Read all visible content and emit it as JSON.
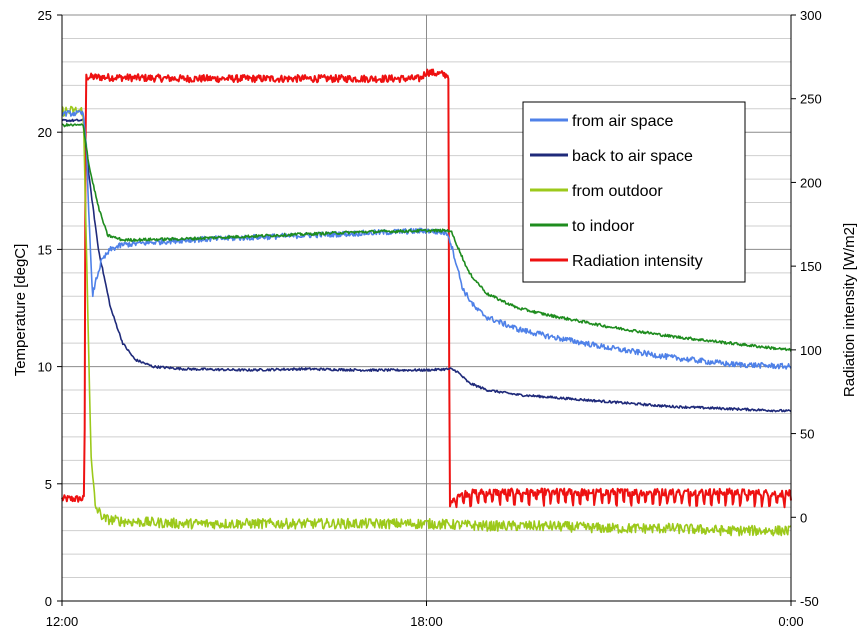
{
  "chart_data": {
    "type": "line",
    "x_ticks": [
      "12:00",
      "18:00",
      "0:00"
    ],
    "x_range_hours": [
      12,
      24
    ],
    "left_axis": {
      "label": "Temperature [degC]",
      "range": [
        0,
        25
      ],
      "ticks": [
        0,
        5,
        10,
        15,
        20,
        25
      ]
    },
    "right_axis": {
      "label": "Radiation intensity [W/m2]",
      "range": [
        -50,
        300
      ],
      "ticks": [
        -50,
        0,
        50,
        100,
        150,
        200,
        250,
        300
      ]
    },
    "grid": {
      "horizontal": true,
      "vertical": "major only"
    },
    "legend_position": "upper-right",
    "series": [
      {
        "name": "from air space",
        "color": "#4f81e8",
        "axis": "left",
        "noise": 0.12,
        "points": [
          [
            12.0,
            20.8
          ],
          [
            12.35,
            20.8
          ],
          [
            12.4,
            19.5
          ],
          [
            12.45,
            16.0
          ],
          [
            12.5,
            13.0
          ],
          [
            12.55,
            13.6
          ],
          [
            12.65,
            14.5
          ],
          [
            12.8,
            15.0
          ],
          [
            13.0,
            15.2
          ],
          [
            13.5,
            15.3
          ],
          [
            14.0,
            15.4
          ],
          [
            15.0,
            15.5
          ],
          [
            16.0,
            15.6
          ],
          [
            17.0,
            15.7
          ],
          [
            18.0,
            15.8
          ],
          [
            18.35,
            15.7
          ],
          [
            18.45,
            14.8
          ],
          [
            18.6,
            13.3
          ],
          [
            18.8,
            12.5
          ],
          [
            19.0,
            12.1
          ],
          [
            19.5,
            11.6
          ],
          [
            20.0,
            11.3
          ],
          [
            21.0,
            10.8
          ],
          [
            22.0,
            10.4
          ],
          [
            23.0,
            10.1
          ],
          [
            24.0,
            10.0
          ]
        ]
      },
      {
        "name": "back to air space",
        "color": "#1f2a7a",
        "axis": "left",
        "noise": 0.05,
        "points": [
          [
            12.0,
            20.5
          ],
          [
            12.35,
            20.5
          ],
          [
            12.45,
            18.0
          ],
          [
            12.6,
            15.0
          ],
          [
            12.8,
            12.5
          ],
          [
            13.0,
            11.0
          ],
          [
            13.2,
            10.3
          ],
          [
            13.5,
            10.0
          ],
          [
            14.0,
            9.9
          ],
          [
            15.0,
            9.85
          ],
          [
            16.0,
            9.9
          ],
          [
            17.0,
            9.85
          ],
          [
            18.0,
            9.85
          ],
          [
            18.4,
            9.9
          ],
          [
            18.5,
            9.8
          ],
          [
            18.7,
            9.3
          ],
          [
            19.0,
            9.0
          ],
          [
            19.5,
            8.8
          ],
          [
            20.0,
            8.7
          ],
          [
            21.0,
            8.5
          ],
          [
            22.0,
            8.3
          ],
          [
            23.0,
            8.2
          ],
          [
            24.0,
            8.1
          ]
        ]
      },
      {
        "name": "from outdoor",
        "color": "#9cc91b",
        "axis": "left",
        "noise": 0.22,
        "points": [
          [
            12.0,
            20.9
          ],
          [
            12.35,
            20.9
          ],
          [
            12.42,
            13.0
          ],
          [
            12.48,
            6.0
          ],
          [
            12.55,
            4.0
          ],
          [
            12.7,
            3.5
          ],
          [
            13.0,
            3.4
          ],
          [
            14.0,
            3.3
          ],
          [
            15.0,
            3.3
          ],
          [
            16.0,
            3.3
          ],
          [
            17.0,
            3.3
          ],
          [
            18.0,
            3.3
          ],
          [
            19.0,
            3.2
          ],
          [
            20.0,
            3.2
          ],
          [
            21.0,
            3.1
          ],
          [
            22.0,
            3.1
          ],
          [
            23.0,
            3.0
          ],
          [
            24.0,
            3.0
          ]
        ]
      },
      {
        "name": "to indoor",
        "color": "#1e8c1e",
        "axis": "left",
        "noise": 0.06,
        "points": [
          [
            12.0,
            20.3
          ],
          [
            12.35,
            20.3
          ],
          [
            12.45,
            18.5
          ],
          [
            12.6,
            16.8
          ],
          [
            12.75,
            15.6
          ],
          [
            13.0,
            15.4
          ],
          [
            14.0,
            15.45
          ],
          [
            15.0,
            15.55
          ],
          [
            16.0,
            15.65
          ],
          [
            17.0,
            15.75
          ],
          [
            18.0,
            15.8
          ],
          [
            18.4,
            15.8
          ],
          [
            18.5,
            15.2
          ],
          [
            18.7,
            14.0
          ],
          [
            19.0,
            13.1
          ],
          [
            19.5,
            12.5
          ],
          [
            20.0,
            12.2
          ],
          [
            21.0,
            11.7
          ],
          [
            22.0,
            11.3
          ],
          [
            23.0,
            11.0
          ],
          [
            24.0,
            10.7
          ]
        ]
      },
      {
        "name": "Radiation intensity",
        "color": "#ee1111",
        "axis": "right",
        "noise": 2.2,
        "points": [
          [
            12.0,
            11
          ],
          [
            12.35,
            11
          ],
          [
            12.37,
            11
          ],
          [
            12.39,
            263
          ],
          [
            14.0,
            262
          ],
          [
            16.0,
            262
          ],
          [
            17.0,
            262
          ],
          [
            17.9,
            262
          ],
          [
            18.0,
            266
          ],
          [
            18.36,
            264
          ],
          [
            18.38,
            6
          ],
          [
            18.5,
            14
          ],
          [
            19.0,
            15
          ],
          [
            20.0,
            15
          ],
          [
            21.0,
            15
          ],
          [
            22.0,
            15
          ],
          [
            23.0,
            15
          ],
          [
            24.0,
            14
          ]
        ]
      }
    ]
  }
}
